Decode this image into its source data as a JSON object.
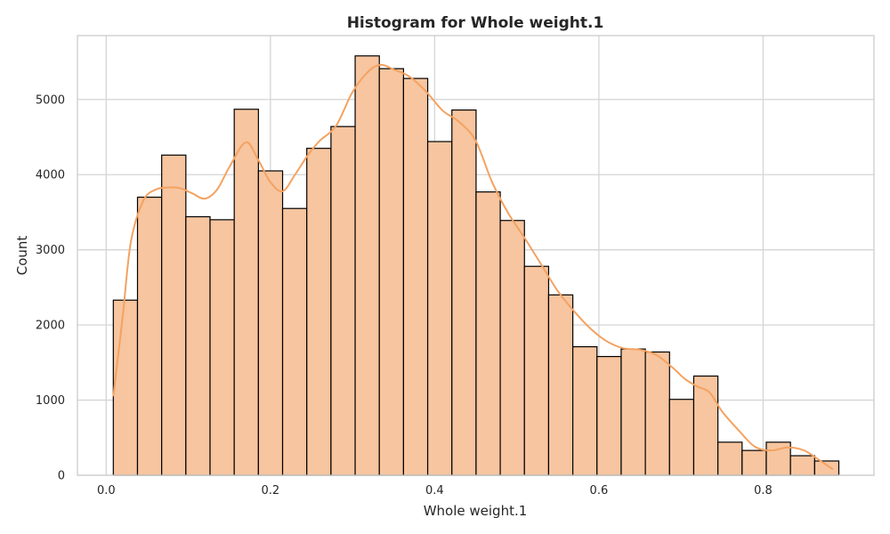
{
  "chart_data": {
    "type": "bar",
    "title": "Histogram for Whole weight.1",
    "xlabel": "Whole weight.1",
    "ylabel": "Count",
    "xlim": [
      -0.035,
      0.935
    ],
    "ylim": [
      0,
      5850
    ],
    "xticks": [
      0.0,
      0.2,
      0.4,
      0.6,
      0.8
    ],
    "xtick_labels": [
      "0.0",
      "0.2",
      "0.4",
      "0.6",
      "0.8"
    ],
    "yticks": [
      0,
      1000,
      2000,
      3000,
      4000,
      5000
    ],
    "ytick_labels": [
      "0",
      "1000",
      "2000",
      "3000",
      "4000",
      "5000"
    ],
    "grid": true,
    "bin_start": 0.0087,
    "bin_width": 0.02945,
    "values": [
      2330,
      3700,
      4260,
      3440,
      3400,
      4870,
      4050,
      3550,
      4350,
      4640,
      5580,
      5410,
      5280,
      4440,
      4860,
      3770,
      3390,
      2780,
      2400,
      1710,
      1580,
      1680,
      1640,
      1010,
      1320,
      440,
      330,
      440,
      260,
      190
    ],
    "kde": {
      "x": [
        0.0087,
        0.02,
        0.03,
        0.045,
        0.06,
        0.075,
        0.09,
        0.105,
        0.12,
        0.135,
        0.15,
        0.17,
        0.185,
        0.2,
        0.215,
        0.23,
        0.245,
        0.26,
        0.28,
        0.3,
        0.32,
        0.335,
        0.35,
        0.37,
        0.39,
        0.41,
        0.43,
        0.45,
        0.47,
        0.49,
        0.51,
        0.53,
        0.55,
        0.57,
        0.59,
        0.61,
        0.63,
        0.65,
        0.67,
        0.69,
        0.705,
        0.72,
        0.735,
        0.75,
        0.77,
        0.79,
        0.81,
        0.83,
        0.85,
        0.87,
        0.885
      ],
      "y": [
        1050,
        2100,
        3100,
        3650,
        3800,
        3830,
        3820,
        3750,
        3680,
        3800,
        4100,
        4430,
        4200,
        3900,
        3780,
        4000,
        4250,
        4450,
        4650,
        5100,
        5380,
        5460,
        5400,
        5300,
        5100,
        4850,
        4700,
        4450,
        3900,
        3480,
        3150,
        2800,
        2450,
        2180,
        1950,
        1780,
        1690,
        1670,
        1600,
        1430,
        1280,
        1180,
        1100,
        850,
        600,
        380,
        330,
        370,
        330,
        190,
        80
      ]
    },
    "bar_fill": "#f7c59f",
    "kde_color": "#f4a261",
    "edge_color": "#000000"
  }
}
